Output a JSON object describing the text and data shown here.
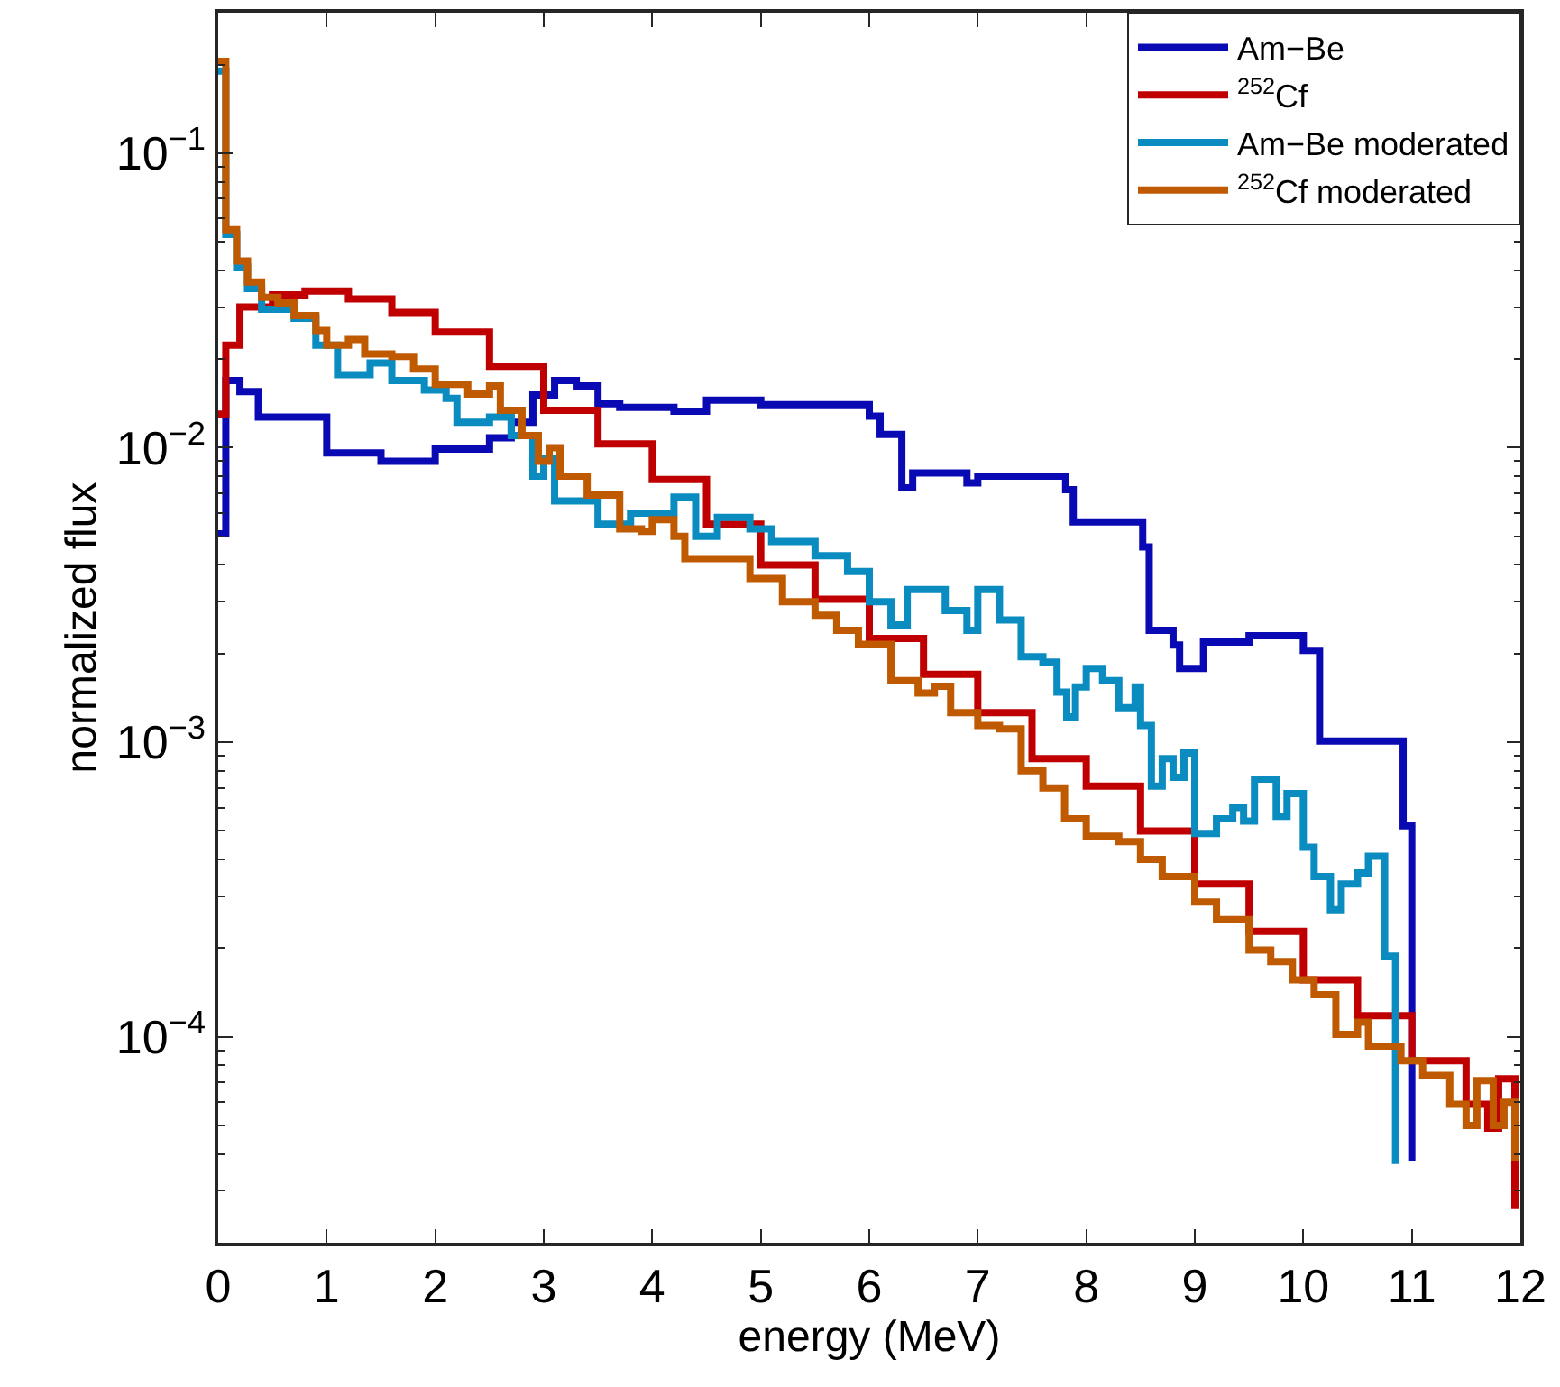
{
  "chart_data": {
    "type": "step",
    "xlabel": "energy (MeV)",
    "ylabel": "normalized flux",
    "log": "y",
    "legend": "top right",
    "marker": "none",
    "line_style": "solid",
    "xlim": [
      0,
      12
    ],
    "xticks": [
      0,
      1,
      2,
      3,
      4,
      5,
      6,
      7,
      8,
      9,
      10,
      11,
      12
    ],
    "ylim": [
      2e-05,
      0.3
    ],
    "yticks": [
      {
        "value": 0.0001,
        "label": "10$^{−4}$"
      },
      {
        "value": 0.001,
        "label": "10$^{−3}$"
      },
      {
        "value": 0.01,
        "label": "10$^{−2}$"
      },
      {
        "value": 0.1,
        "label": "10$^{−1}$"
      }
    ],
    "series": [
      {
        "name": "Am−Be",
        "color": "#0a0ab4",
        "x": [
          0,
          0.07,
          0.2,
          0.37,
          1.0,
          1.5,
          2.0,
          2.5,
          2.7,
          2.9,
          3.1,
          3.3,
          3.5,
          3.7,
          4.2,
          4.5,
          5.0,
          6.0,
          6.1,
          6.3,
          6.4,
          6.9,
          7.0,
          7.81,
          7.88,
          8.52,
          8.58,
          8.8,
          8.86,
          9.08,
          9.5,
          10.0,
          10.15,
          10.92,
          11.0
        ],
        "values": [
          0.0051,
          0.0169,
          0.0155,
          0.0127,
          0.0096,
          0.009,
          0.0099,
          0.0108,
          0.0122,
          0.0151,
          0.0169,
          0.0162,
          0.0141,
          0.0137,
          0.0133,
          0.0145,
          0.014,
          0.0128,
          0.0111,
          0.0073,
          0.0082,
          0.0076,
          0.008,
          0.0072,
          0.0056,
          0.0046,
          0.0024,
          0.00214,
          0.00178,
          0.00219,
          0.0023,
          0.00205,
          0.00101,
          0.00052,
          3.8e-05
        ]
      },
      {
        "name": "$^{252}$Cf",
        "color": "#c00000",
        "x": [
          0,
          0.07,
          0.2,
          0.5,
          0.8,
          1.2,
          1.6,
          2.0,
          2.5,
          3.0,
          3.5,
          4.0,
          4.5,
          5.0,
          5.5,
          6.0,
          6.5,
          7.0,
          7.5,
          8.0,
          8.5,
          9.0,
          9.5,
          10.0,
          10.5,
          11.0,
          11.5,
          11.7,
          11.8,
          11.95
        ],
        "values": [
          0.013,
          0.0223,
          0.03,
          0.033,
          0.034,
          0.032,
          0.0288,
          0.0247,
          0.0189,
          0.0134,
          0.0103,
          0.0078,
          0.0055,
          0.004,
          0.00306,
          0.00225,
          0.0017,
          0.00126,
          0.00088,
          0.00071,
          0.0005,
          0.00033,
          0.000228,
          0.000156,
          0.000118,
          8.3e-05,
          5.9e-05,
          4.9e-05,
          7.2e-05,
          2.6e-05
        ]
      },
      {
        "name": "Am−Be moderated",
        "color": "#0a8cc0",
        "x": [
          0,
          0.07,
          0.17,
          0.27,
          0.4,
          0.7,
          0.9,
          1.1,
          1.4,
          1.6,
          1.9,
          2.1,
          2.2,
          2.5,
          2.7,
          2.9,
          3.0,
          3.1,
          3.5,
          3.8,
          4.0,
          4.2,
          4.4,
          4.6,
          4.9,
          5.1,
          5.5,
          5.8,
          6.0,
          6.2,
          6.35,
          6.7,
          6.9,
          7.0,
          7.2,
          7.4,
          7.6,
          7.73,
          7.82,
          7.9,
          8.0,
          8.15,
          8.3,
          8.45,
          8.5,
          8.6,
          8.7,
          8.8,
          8.9,
          9.0,
          9.2,
          9.35,
          9.45,
          9.55,
          9.75,
          9.85,
          10.0,
          10.1,
          10.25,
          10.35,
          10.5,
          10.6,
          10.75,
          10.85
        ],
        "values": [
          0.19,
          0.053,
          0.041,
          0.0347,
          0.0295,
          0.0275,
          0.0223,
          0.0177,
          0.0194,
          0.0169,
          0.0157,
          0.0147,
          0.0122,
          0.0127,
          0.011,
          0.008,
          0.0092,
          0.0066,
          0.0055,
          0.006,
          0.006,
          0.0068,
          0.005,
          0.0058,
          0.0053,
          0.0048,
          0.0043,
          0.0038,
          0.003,
          0.0025,
          0.0033,
          0.0028,
          0.0024,
          0.0033,
          0.0026,
          0.00195,
          0.00187,
          0.00148,
          0.00122,
          0.00154,
          0.00178,
          0.00162,
          0.00131,
          0.00154,
          0.00114,
          0.00071,
          0.00088,
          0.00076,
          0.00092,
          0.00049,
          0.00055,
          0.0006,
          0.00054,
          0.00075,
          0.00056,
          0.00067,
          0.00044,
          0.00035,
          0.00027,
          0.00033,
          0.00036,
          0.00041,
          0.000188,
          3.7e-05
        ]
      },
      {
        "name": "$^{252}$Cf moderated",
        "color": "#c05a00",
        "x": [
          0,
          0.07,
          0.17,
          0.27,
          0.4,
          0.55,
          0.7,
          0.9,
          1.0,
          1.2,
          1.35,
          1.6,
          1.8,
          2.0,
          2.3,
          2.5,
          2.6,
          2.8,
          2.95,
          3.05,
          3.15,
          3.4,
          3.7,
          3.9,
          4.0,
          4.2,
          4.3,
          4.9,
          5.2,
          5.5,
          5.7,
          5.9,
          6.2,
          6.45,
          6.6,
          6.75,
          7.0,
          7.2,
          7.4,
          7.6,
          7.8,
          8.0,
          8.3,
          8.5,
          8.7,
          9.0,
          9.2,
          9.5,
          9.7,
          9.9,
          10.1,
          10.3,
          10.5,
          10.6,
          10.9,
          11.1,
          11.35,
          11.5,
          11.6,
          11.75,
          11.85,
          11.95
        ],
        "values": [
          0.205,
          0.055,
          0.043,
          0.0365,
          0.0324,
          0.031,
          0.0281,
          0.025,
          0.0223,
          0.0233,
          0.0208,
          0.0204,
          0.0185,
          0.0164,
          0.0152,
          0.0162,
          0.0134,
          0.011,
          0.009,
          0.01,
          0.008,
          0.0069,
          0.0053,
          0.0052,
          0.0057,
          0.005,
          0.0042,
          0.0036,
          0.003,
          0.0027,
          0.0024,
          0.00215,
          0.00162,
          0.00147,
          0.00155,
          0.00126,
          0.00114,
          0.00111,
          0.0008,
          0.0007,
          0.00055,
          0.00048,
          0.00046,
          0.0004,
          0.00035,
          0.000287,
          0.00025,
          0.000197,
          0.00018,
          0.000156,
          0.000139,
          0.000102,
          0.000112,
          9.3e-05,
          8.3e-05,
          7.4e-05,
          5.9e-05,
          5e-05,
          7.1e-05,
          5e-05,
          6e-05,
          3.8e-05
        ]
      }
    ]
  }
}
